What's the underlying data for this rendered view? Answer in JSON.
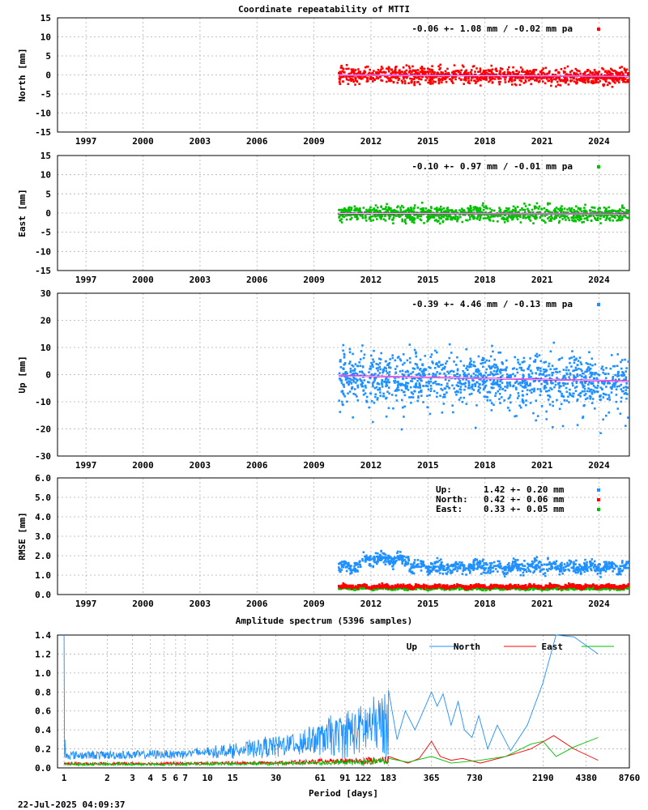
{
  "title": "Coordinate repeatability of MTTI",
  "timestamp": "22-Jul-2025 04:09:37",
  "colors": {
    "north": "#ff0000",
    "east": "#00c000",
    "up": "#1e90ff",
    "trend": "#cc00cc",
    "grid": "#b0b0b0"
  },
  "year_ticks": [
    "1997",
    "2000",
    "2003",
    "2006",
    "2009",
    "2012",
    "2015",
    "2018",
    "2021",
    "2024"
  ],
  "time_range": [
    1995.5,
    2025.6
  ],
  "chart_data": [
    {
      "id": "north",
      "type": "scatter",
      "ylabel": "North [mm]",
      "ylim": [
        -15,
        15
      ],
      "yticks": [
        -15,
        -10,
        -5,
        0,
        5,
        10,
        15
      ],
      "legend": "-0.06 +- 1.08 mm / -0.02 mm pa",
      "series": [
        {
          "name": "North",
          "color_key": "north",
          "start": 2010.3,
          "end": 2025.55,
          "mean": -0.06,
          "std": 1.08,
          "rate": -0.02,
          "n": 1100
        }
      ]
    },
    {
      "id": "east",
      "type": "scatter",
      "ylabel": "East [mm]",
      "ylim": [
        -15,
        15
      ],
      "yticks": [
        -15,
        -10,
        -5,
        0,
        5,
        10,
        15
      ],
      "legend": "-0.10 +- 0.97 mm / -0.01 mm pa",
      "series": [
        {
          "name": "East",
          "color_key": "east",
          "start": 2010.3,
          "end": 2025.55,
          "mean": -0.1,
          "std": 0.97,
          "rate": -0.01,
          "n": 1100
        }
      ]
    },
    {
      "id": "up",
      "type": "scatter",
      "ylabel": "Up [mm]",
      "ylim": [
        -30,
        30
      ],
      "yticks": [
        -30,
        -20,
        -10,
        0,
        10,
        20,
        30
      ],
      "legend": "-0.39 +- 4.46 mm / -0.13 mm pa",
      "series": [
        {
          "name": "Up",
          "color_key": "up",
          "start": 2010.3,
          "end": 2025.55,
          "mean": -0.39,
          "std": 4.46,
          "rate": -0.13,
          "n": 1300
        }
      ]
    },
    {
      "id": "rmse",
      "type": "scatter",
      "ylabel": "RMSE [mm]",
      "ylim": [
        0,
        6
      ],
      "yticks": [
        "0.0",
        "1.0",
        "2.0",
        "3.0",
        "4.0",
        "5.0",
        "6.0"
      ],
      "legend_rows": [
        {
          "label": "Up:",
          "value": "1.42 +- 0.20 mm",
          "color_key": "up"
        },
        {
          "label": "North:",
          "value": "0.42 +- 0.06 mm",
          "color_key": "north"
        },
        {
          "label": "East:",
          "value": "0.33 +- 0.05 mm",
          "color_key": "east"
        }
      ],
      "series": [
        {
          "name": "Up",
          "color_key": "up",
          "mean": 1.42,
          "std": 0.2
        },
        {
          "name": "North",
          "color_key": "north",
          "mean": 0.42,
          "std": 0.06
        },
        {
          "name": "East",
          "color_key": "east",
          "mean": 0.33,
          "std": 0.05
        }
      ]
    },
    {
      "id": "spectrum",
      "type": "line",
      "title": "Amplitude spectrum (5396 samples)",
      "xlabel": "Period [days]",
      "x_scale": "log",
      "xlim": [
        0.9,
        8760
      ],
      "ylim": [
        0,
        1.4
      ],
      "yticks": [
        "0.0",
        "0.2",
        "0.4",
        "0.6",
        "0.8",
        "1.0",
        "1.2",
        "1.4"
      ],
      "xticks": [
        "1",
        "2",
        "3",
        "4",
        "5",
        "6",
        "7",
        "10",
        "15",
        "30",
        "61",
        "91",
        "122",
        "183",
        "365",
        "730",
        "2190",
        "4380",
        "8760"
      ],
      "legend": [
        "Up",
        "North",
        "East"
      ],
      "series": [
        {
          "name": "Up",
          "color_key": "up",
          "points": [
            [
              183,
              0.82
            ],
            [
              210,
              0.3
            ],
            [
              240,
              0.6
            ],
            [
              280,
              0.4
            ],
            [
              310,
              0.55
            ],
            [
              365,
              0.8
            ],
            [
              400,
              0.65
            ],
            [
              440,
              0.78
            ],
            [
              500,
              0.45
            ],
            [
              560,
              0.7
            ],
            [
              620,
              0.4
            ],
            [
              700,
              0.32
            ],
            [
              780,
              0.55
            ],
            [
              900,
              0.2
            ],
            [
              1050,
              0.45
            ],
            [
              1300,
              0.18
            ],
            [
              1700,
              0.45
            ],
            [
              2190,
              0.9
            ],
            [
              2700,
              1.4
            ],
            [
              3600,
              1.38
            ],
            [
              5300,
              1.2
            ]
          ]
        },
        {
          "name": "North",
          "color_key": "north",
          "points": [
            [
              183,
              0.12
            ],
            [
              250,
              0.05
            ],
            [
              300,
              0.1
            ],
            [
              365,
              0.28
            ],
            [
              420,
              0.12
            ],
            [
              500,
              0.08
            ],
            [
              600,
              0.1
            ],
            [
              800,
              0.05
            ],
            [
              1200,
              0.12
            ],
            [
              1800,
              0.2
            ],
            [
              2600,
              0.34
            ],
            [
              3600,
              0.2
            ],
            [
              5300,
              0.08
            ]
          ]
        },
        {
          "name": "East",
          "color_key": "east",
          "points": [
            [
              183,
              0.1
            ],
            [
              250,
              0.06
            ],
            [
              365,
              0.12
            ],
            [
              500,
              0.05
            ],
            [
              800,
              0.08
            ],
            [
              1200,
              0.12
            ],
            [
              1800,
              0.25
            ],
            [
              2190,
              0.28
            ],
            [
              2700,
              0.12
            ],
            [
              3600,
              0.22
            ],
            [
              5300,
              0.32
            ]
          ]
        }
      ]
    }
  ]
}
